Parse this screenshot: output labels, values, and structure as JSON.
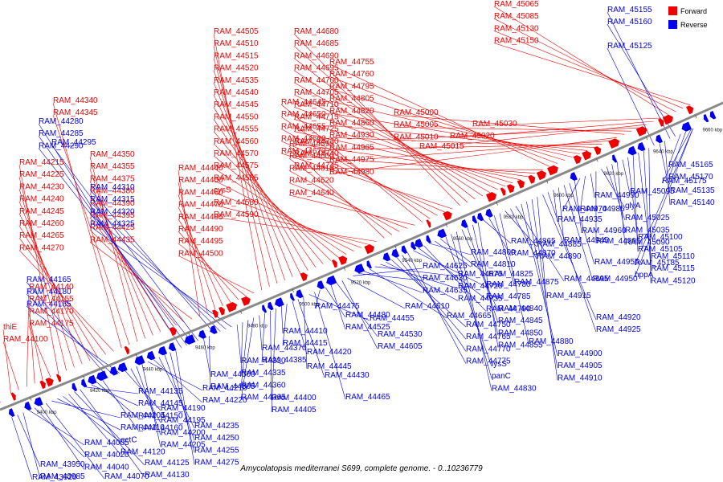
{
  "title": "Amycolatopsis mediterranei S699, complete genome. - 0..10236779",
  "legend": {
    "forward": "Forward",
    "reverse": "Reverse"
  },
  "colors": {
    "forward": "#ee0000",
    "reverse": "#0000ee",
    "backbone": "#888888"
  },
  "ticks": [
    "9400 kbp",
    "9420 kbp",
    "9440 kbp",
    "9460 kbp",
    "9480 kbp",
    "9500 kbp",
    "9520 kbp",
    "9540 kbp",
    "9560 kbp",
    "9580 kbp",
    "9600 kbp",
    "9620 kbp",
    "9640 kbp",
    "9660 kbp"
  ],
  "forward_labels": [
    "thiE",
    "RAM_44100",
    "RAM_44140",
    "RAM_44155",
    "RAM_44170",
    "RAM_44175",
    "RAM_44215",
    "RAM_44225",
    "RAM_44230",
    "RAM_44240",
    "RAM_44245",
    "RAM_44260",
    "RAM_44265",
    "RAM_44270",
    "RAM_44340",
    "RAM_44345",
    "RAM_44350",
    "RAM_44355",
    "RAM_44375",
    "RAM_44380",
    "RAM_44390",
    "RAM_44395",
    "RAM_44425",
    "RAM_44435",
    "RAM_44440",
    "RAM_44450",
    "RAM_44460",
    "RAM_44470",
    "RAM_44485",
    "RAM_44490",
    "RAM_44495",
    "RAM_44500",
    "RAM_44505",
    "RAM_44510",
    "RAM_44515",
    "RAM_44520",
    "RAM_44535",
    "RAM_44540",
    "RAM_44545",
    "RAM_44550",
    "RAM_44555",
    "RAM_44560",
    "RAM_44570",
    "RAM_44575",
    "RAM_44585",
    "cysS",
    "RAM_44580",
    "RAM_44590",
    "RAM_44595",
    "RAM_44600",
    "RAM_44615",
    "RAM_44620",
    "RAM_44640",
    "RAM_44645",
    "RAM_44650",
    "RAM_44655",
    "RAM_44660",
    "RAM_44670",
    "RAM_44680",
    "RAM_44685",
    "RAM_44690",
    "RAM_44695",
    "RAM_44700",
    "RAM_44705",
    "RAM_44710",
    "RAM_44715",
    "RAM_44725",
    "RAM_44730",
    "RAM_44740",
    "RAM_44745",
    "RAM_44755",
    "RAM_44760",
    "RAM_44795",
    "RAM_44805",
    "RAM_44820",
    "RAM_44860",
    "RAM_44930",
    "RAM_44965",
    "RAM_44975",
    "RAM_44980",
    "RAM_45000",
    "RAM_45005",
    "RAM_45010",
    "RAM_45015",
    "RAM_45020",
    "RAM_45030",
    "RAM_45065",
    "RAM_45085",
    "RAM_45130",
    "RAM_45150"
  ],
  "reverse_labels": [
    "RAM_43920",
    "RAM_43950",
    "RAM_43985",
    "RAM_44005",
    "RAM_44020",
    "RAM_44040",
    "RAM_44070",
    "RAM_44105",
    "RAM_44110",
    "ectC",
    "RAM_44120",
    "RAM_44125",
    "RAM_44130",
    "RAM_44135",
    "RAM_44145",
    "RAM_44150",
    "RAM_44160",
    "RAM_44165",
    "RAM_44180",
    "RAM_44185",
    "RAM_44190",
    "RAM_44195",
    "RAM_44200",
    "RAM_44205",
    "RAM_44210",
    "RAM_44220",
    "RAM_44235",
    "RAM_44250",
    "RAM_44255",
    "RAM_44275",
    "RAM_44280",
    "RAM_44285",
    "RAM_44290",
    "RAM_44295",
    "RAM_44300",
    "RAM_44305",
    "RAM_44310",
    "RAM_44315",
    "RAM_44320",
    "RAM_44325",
    "RAM_44330",
    "RAM_44335",
    "RAM_44360",
    "RAM_44365",
    "RAM_44370",
    "RAM_44385",
    "RAM_44400",
    "RAM_44405",
    "RAM_44410",
    "RAM_44415",
    "RAM_44420",
    "RAM_44430",
    "RAM_44445",
    "RAM_44455",
    "RAM_44465",
    "RAM_44475",
    "RAM_44480",
    "RAM_44525",
    "RAM_44530",
    "RAM_44605",
    "RAM_44610",
    "RAM_44625",
    "RAM_44630",
    "RAM_44635",
    "RAM_44665",
    "RAM_44675",
    "RAM_44720",
    "RAM_44735",
    "RAM_44750",
    "RAM_44765",
    "RAM_44770",
    "RAM_44775",
    "RAM_44780",
    "RAM_44785",
    "RAM_44790",
    "RAM_44800",
    "RAM_44810",
    "RAM_44825",
    "lysS",
    "panC",
    "RAM_44830",
    "RAM_44840",
    "RAM_44845",
    "RAM_44850",
    "RAM_44855",
    "RAM_44865",
    "RAM_44870",
    "RAM_44875",
    "RAM_44880",
    "RAM_44885",
    "RAM_44890",
    "RAM_44895",
    "RAM_44900",
    "RAM_44905",
    "RAM_44910",
    "RAM_44915",
    "RAM_44920",
    "RAM_44925",
    "RAM_44935",
    "RAM_44945",
    "RAM_44950",
    "RAM_44955",
    "RAM_44960",
    "RAM_44970",
    "RAM_44985",
    "RAM_44990",
    "RAM_44995",
    "glyA",
    "RAM_45025",
    "RAM_45035",
    "RAM_45090",
    "RAM_45095",
    "RAM_45100",
    "RAM_45105",
    "RAM_45110",
    "RAM_45115",
    "RAM_45120",
    "RAM_45125",
    "RAM_45135",
    "RAM_45140",
    "RAM_45155",
    "RAM_45160",
    "RAM_45165",
    "RAM_45170",
    "RAM_45175",
    "RAM_45185",
    "hppA"
  ]
}
